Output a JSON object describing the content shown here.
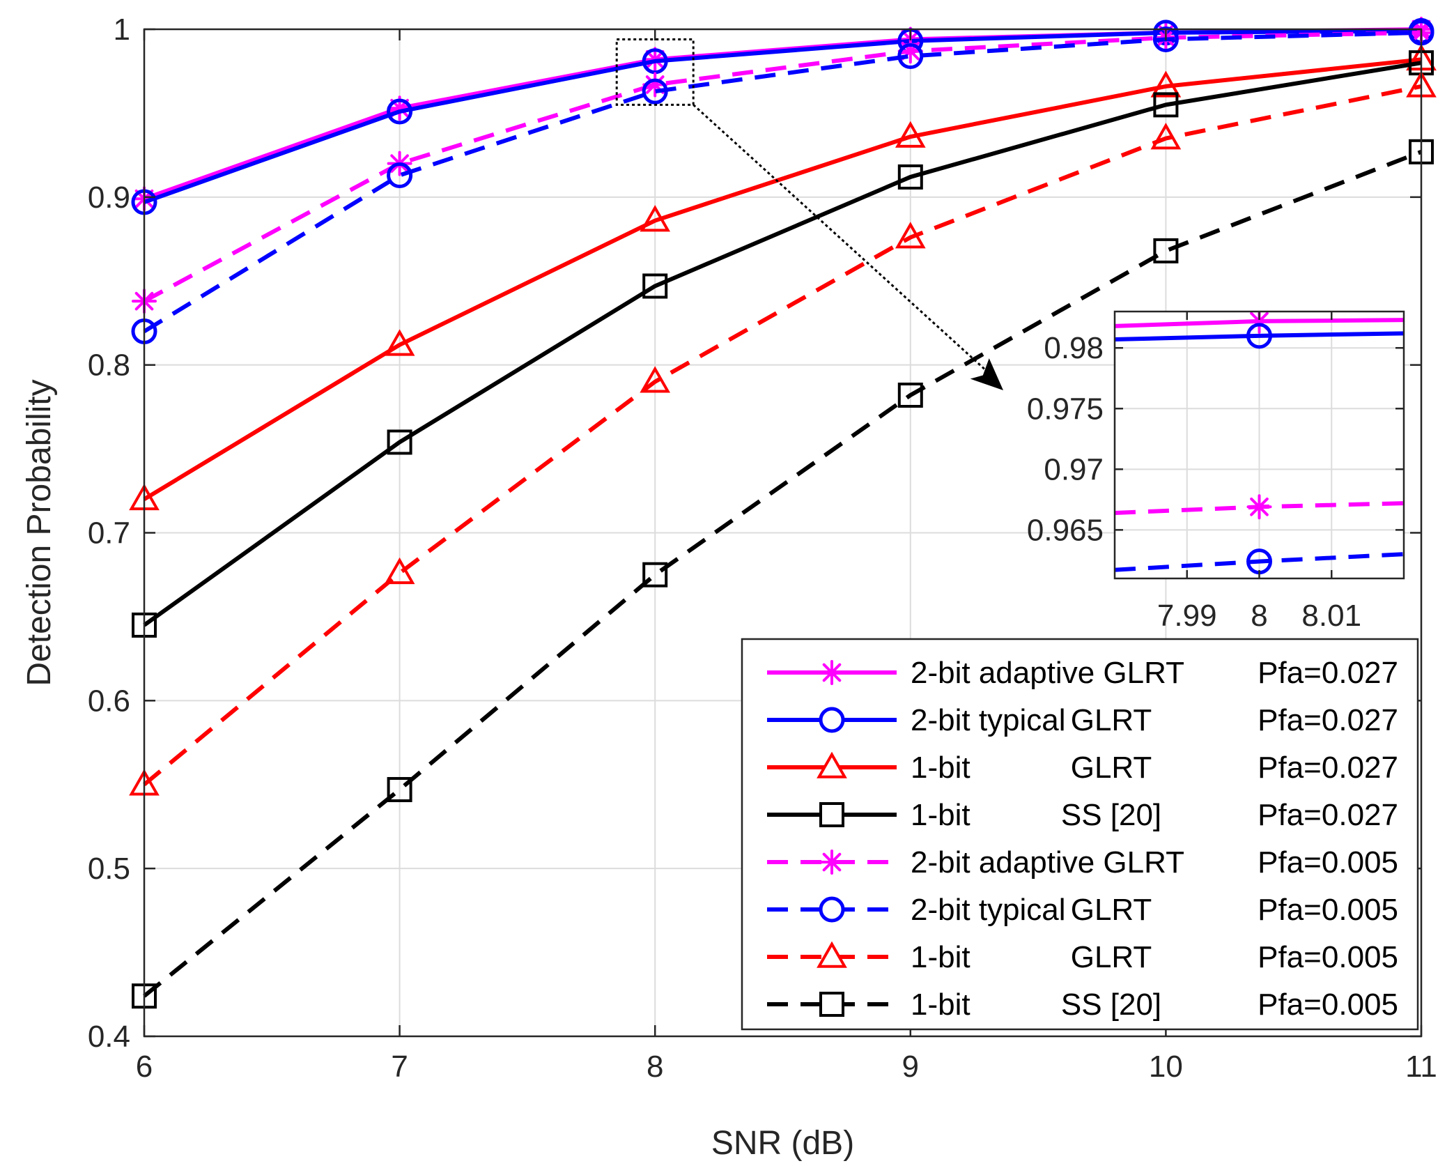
{
  "chart_data": {
    "type": "line",
    "xlabel": "SNR (dB)",
    "ylabel": "Detection Probability",
    "x": [
      6,
      7,
      8,
      9,
      10,
      11
    ],
    "xlim": [
      6,
      11
    ],
    "ylim": [
      0.4,
      1
    ],
    "xticks": [
      "6",
      "7",
      "8",
      "9",
      "10",
      "11"
    ],
    "yticks": [
      "0.4",
      "0.5",
      "0.6",
      "0.7",
      "0.8",
      "0.9",
      "1"
    ],
    "grid": true,
    "legend_position": "bottom-right",
    "series": [
      {
        "name": "2-bit adaptive GLRT",
        "method": "",
        "pfa": "Pfa=0.027",
        "color": "#ff00ff",
        "marker": "asterisk",
        "dash": "solid",
        "values": [
          0.899,
          0.953,
          0.982,
          0.994,
          0.998,
          1.0
        ]
      },
      {
        "name": "2-bit typical",
        "method": "GLRT",
        "pfa": "Pfa=0.027",
        "color": "#0000ff",
        "marker": "circle",
        "dash": "solid",
        "values": [
          0.897,
          0.951,
          0.981,
          0.993,
          0.998,
          0.999
        ]
      },
      {
        "name": "1-bit",
        "method": "GLRT",
        "pfa": "Pfa=0.027",
        "color": "#ff0000",
        "marker": "triangle",
        "dash": "solid",
        "values": [
          0.72,
          0.812,
          0.886,
          0.936,
          0.966,
          0.982
        ]
      },
      {
        "name": "1-bit",
        "method": "SS  [20]",
        "pfa": "Pfa=0.027",
        "color": "#000000",
        "marker": "square",
        "dash": "solid",
        "values": [
          0.645,
          0.754,
          0.847,
          0.912,
          0.955,
          0.98
        ]
      },
      {
        "name": "2-bit adaptive GLRT",
        "method": "",
        "pfa": "Pfa=0.005",
        "color": "#ff00ff",
        "marker": "asterisk",
        "dash": "dashed",
        "values": [
          0.838,
          0.92,
          0.967,
          0.987,
          0.995,
          0.998
        ]
      },
      {
        "name": "2-bit typical",
        "method": "GLRT",
        "pfa": "Pfa=0.005",
        "color": "#0000ff",
        "marker": "circle",
        "dash": "dashed",
        "values": [
          0.82,
          0.913,
          0.963,
          0.984,
          0.994,
          0.998
        ]
      },
      {
        "name": "1-bit",
        "method": "GLRT",
        "pfa": "Pfa=0.005",
        "color": "#ff0000",
        "marker": "triangle",
        "dash": "dashed",
        "values": [
          0.55,
          0.676,
          0.79,
          0.876,
          0.935,
          0.966
        ]
      },
      {
        "name": "1-bit",
        "method": "SS  [20]",
        "pfa": "Pfa=0.005",
        "color": "#000000",
        "marker": "square",
        "dash": "dashed",
        "values": [
          0.424,
          0.547,
          0.675,
          0.782,
          0.868,
          0.927
        ]
      }
    ],
    "inset": {
      "xlim": [
        7.98,
        8.02
      ],
      "ylim": [
        0.961,
        0.983
      ],
      "xticks": [
        "7.99",
        "8",
        "8.01"
      ],
      "yticks": [
        "0.965",
        "0.97",
        "0.975",
        "0.98"
      ],
      "series": [
        {
          "color": "#ff00ff",
          "marker": "asterisk",
          "dash": "solid",
          "x": [
            7.98,
            8,
            8.02
          ],
          "values": [
            0.9818,
            0.9822,
            0.9823
          ]
        },
        {
          "color": "#0000ff",
          "marker": "circle",
          "dash": "solid",
          "x": [
            7.98,
            8,
            8.02
          ],
          "values": [
            0.9807,
            0.981,
            0.9812
          ]
        },
        {
          "color": "#ff00ff",
          "marker": "asterisk",
          "dash": "dashed",
          "x": [
            7.98,
            8,
            8.02
          ],
          "values": [
            0.9664,
            0.9669,
            0.9672
          ]
        },
        {
          "color": "#0000ff",
          "marker": "circle",
          "dash": "dashed",
          "x": [
            7.98,
            8,
            8.02
          ],
          "values": [
            0.9617,
            0.9624,
            0.963
          ]
        }
      ]
    }
  }
}
